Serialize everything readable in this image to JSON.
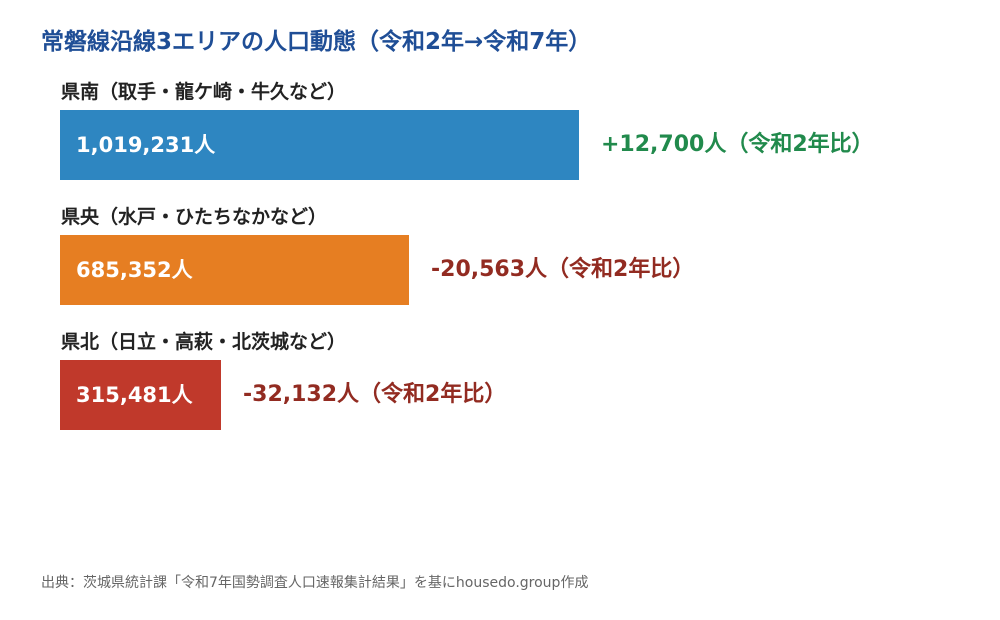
{
  "chart_data": {
    "type": "bar",
    "orientation": "horizontal",
    "title": "常磐線沿線3エリアの人口動態（令和2年→令和7年）",
    "categories": [
      "県南（取手・龍ケ崎・牛久など）",
      "県央（水戸・ひたちなかなど）",
      "県北（日立・高萩・北茨城など）"
    ],
    "values": [
      1019231,
      685352,
      315481
    ],
    "value_labels": [
      "1,019,231人",
      "685,352人",
      "315,481人"
    ],
    "change_labels": [
      "+12,700人（令和2年比）",
      "-20,563人（令和2年比）",
      "-32,132人（令和2年比）"
    ],
    "changes": [
      12700,
      -20563,
      -32132
    ],
    "bar_colors": [
      "#2e86c1",
      "#e67e22",
      "#c0392b"
    ],
    "change_colors": [
      "#218a4c",
      "#922b21",
      "#922b21"
    ],
    "xlim": [
      0,
      1019231
    ],
    "grid": false
  },
  "source": "出典：茨城県統計課「令和7年国勢調査人口速報集計結果」を基にhousedo.group作成"
}
